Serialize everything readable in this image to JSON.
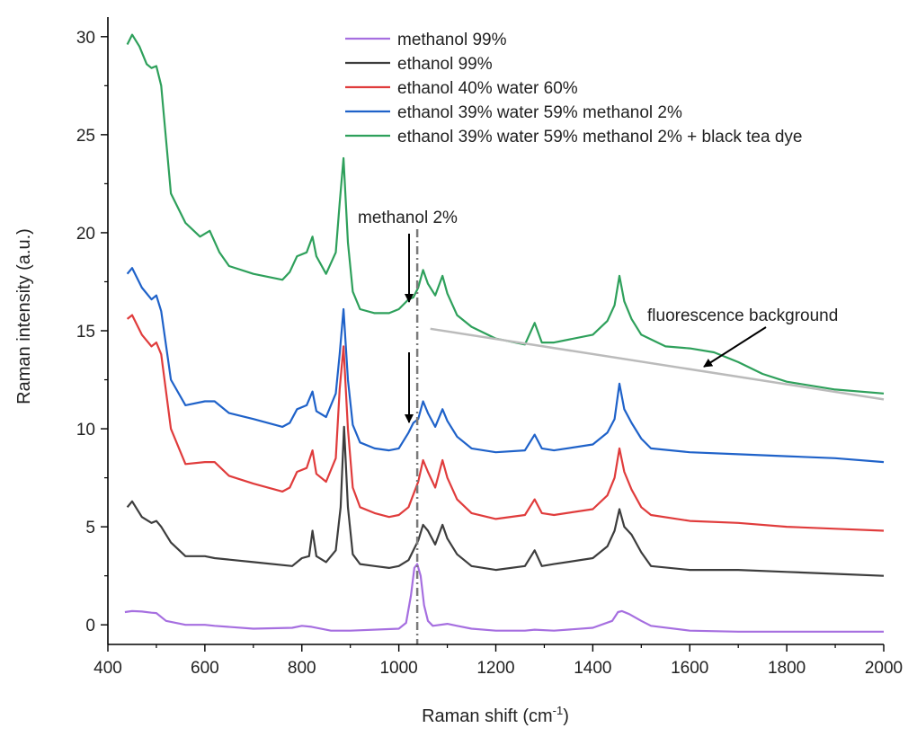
{
  "chart_data": {
    "type": "line",
    "xlabel": "Raman shift (cm",
    "xlabel_sup": "-1",
    "xlabel_end": ")",
    "ylabel": "Raman intensity (a.u.)",
    "xlim": [
      400,
      2000
    ],
    "ylim": [
      -1,
      31
    ],
    "xticks": [
      "400",
      "600",
      "800",
      "1000",
      "1200",
      "1400",
      "1600",
      "1800",
      "2000"
    ],
    "yticks": [
      "0",
      "5",
      "10",
      "15",
      "20",
      "25",
      "30"
    ],
    "legend_position": "top-right",
    "series": [
      {
        "name": "methanol 99%",
        "color": "#a66fe0",
        "x": [
          435,
          450,
          470,
          490,
          500,
          520,
          560,
          600,
          620,
          700,
          780,
          800,
          820,
          860,
          900,
          1000,
          1015,
          1025,
          1032,
          1038,
          1045,
          1052,
          1060,
          1070,
          1100,
          1120,
          1150,
          1200,
          1260,
          1280,
          1320,
          1400,
          1440,
          1452,
          1460,
          1475,
          1500,
          1520,
          1600,
          1700,
          1800,
          1900,
          2000
        ],
        "y": [
          0.65,
          0.7,
          0.68,
          0.62,
          0.6,
          0.2,
          0.0,
          0.0,
          -0.05,
          -0.2,
          -0.15,
          -0.05,
          -0.1,
          -0.3,
          -0.3,
          -0.2,
          0.1,
          1.5,
          2.9,
          3.1,
          2.5,
          1.0,
          0.2,
          -0.05,
          0.05,
          -0.05,
          -0.2,
          -0.3,
          -0.3,
          -0.25,
          -0.3,
          -0.15,
          0.2,
          0.65,
          0.7,
          0.55,
          0.2,
          -0.05,
          -0.3,
          -0.35,
          -0.35,
          -0.35,
          -0.35
        ]
      },
      {
        "name": "ethanol 99%",
        "color": "#3d3d3d",
        "x": [
          440,
          450,
          470,
          490,
          500,
          510,
          530,
          560,
          600,
          620,
          700,
          780,
          800,
          815,
          822,
          830,
          850,
          870,
          880,
          887,
          895,
          905,
          920,
          950,
          980,
          1000,
          1020,
          1040,
          1050,
          1060,
          1075,
          1090,
          1100,
          1120,
          1150,
          1200,
          1260,
          1280,
          1295,
          1320,
          1400,
          1430,
          1445,
          1455,
          1465,
          1480,
          1500,
          1520,
          1600,
          1700,
          1800,
          1900,
          2000
        ],
        "y": [
          6.0,
          6.3,
          5.5,
          5.2,
          5.3,
          5.0,
          4.2,
          3.5,
          3.5,
          3.4,
          3.2,
          3.0,
          3.4,
          3.5,
          4.8,
          3.5,
          3.2,
          3.8,
          6.0,
          10.1,
          6.0,
          3.6,
          3.1,
          3.0,
          2.9,
          3.0,
          3.3,
          4.3,
          5.1,
          4.8,
          4.1,
          5.1,
          4.4,
          3.6,
          3.0,
          2.8,
          3.0,
          3.8,
          3.0,
          3.1,
          3.4,
          4.0,
          4.8,
          5.9,
          5.0,
          4.6,
          3.7,
          3.0,
          2.8,
          2.8,
          2.7,
          2.6,
          2.5
        ]
      },
      {
        "name": "ethanol 40% water 60%",
        "color": "#e03c3c",
        "x": [
          440,
          450,
          470,
          490,
          500,
          510,
          530,
          560,
          600,
          620,
          650,
          700,
          760,
          775,
          790,
          810,
          822,
          830,
          850,
          870,
          878,
          886,
          895,
          905,
          920,
          950,
          980,
          1000,
          1020,
          1040,
          1050,
          1060,
          1075,
          1090,
          1100,
          1120,
          1150,
          1200,
          1260,
          1280,
          1295,
          1320,
          1400,
          1430,
          1445,
          1455,
          1465,
          1480,
          1500,
          1520,
          1600,
          1700,
          1800,
          1900,
          2000
        ],
        "y": [
          15.6,
          15.8,
          14.8,
          14.2,
          14.4,
          13.8,
          10.0,
          8.2,
          8.3,
          8.3,
          7.6,
          7.2,
          6.8,
          7.0,
          7.8,
          8.0,
          8.9,
          7.7,
          7.3,
          8.5,
          12.0,
          14.2,
          10.0,
          7.0,
          6.0,
          5.7,
          5.5,
          5.6,
          6.0,
          7.3,
          8.4,
          7.8,
          7.0,
          8.4,
          7.5,
          6.4,
          5.7,
          5.4,
          5.6,
          6.4,
          5.7,
          5.6,
          5.9,
          6.6,
          7.5,
          9.0,
          7.8,
          6.9,
          6.0,
          5.6,
          5.3,
          5.2,
          5.0,
          4.9,
          4.8
        ]
      },
      {
        "name": "ethanol 39% water 59% methanol 2%",
        "color": "#1f62c9",
        "x": [
          440,
          450,
          470,
          490,
          500,
          510,
          530,
          560,
          600,
          620,
          650,
          700,
          760,
          775,
          790,
          810,
          822,
          830,
          850,
          870,
          878,
          886,
          895,
          905,
          920,
          950,
          980,
          1000,
          1020,
          1030,
          1040,
          1050,
          1060,
          1075,
          1090,
          1100,
          1120,
          1150,
          1200,
          1260,
          1280,
          1295,
          1320,
          1400,
          1430,
          1445,
          1455,
          1465,
          1480,
          1500,
          1520,
          1600,
          1700,
          1800,
          1900,
          2000
        ],
        "y": [
          17.9,
          18.2,
          17.2,
          16.6,
          16.8,
          16.0,
          12.5,
          11.2,
          11.4,
          11.4,
          10.8,
          10.5,
          10.1,
          10.3,
          11.0,
          11.2,
          11.9,
          10.9,
          10.6,
          11.8,
          13.8,
          16.1,
          12.5,
          10.2,
          9.3,
          9.0,
          8.9,
          9.0,
          9.8,
          10.3,
          10.5,
          11.4,
          10.8,
          10.1,
          11.0,
          10.4,
          9.6,
          9.0,
          8.8,
          8.9,
          9.7,
          9.0,
          8.9,
          9.2,
          9.8,
          10.5,
          12.3,
          11.0,
          10.3,
          9.5,
          9.0,
          8.8,
          8.7,
          8.6,
          8.5,
          8.3
        ]
      },
      {
        "name": "ethanol 39% water 59% methanol 2% + black tea dye",
        "color": "#2ea05b",
        "x": [
          440,
          450,
          465,
          480,
          490,
          500,
          510,
          530,
          560,
          590,
          610,
          630,
          650,
          700,
          760,
          775,
          790,
          810,
          822,
          830,
          850,
          870,
          878,
          886,
          895,
          905,
          920,
          950,
          980,
          1000,
          1020,
          1030,
          1040,
          1050,
          1060,
          1075,
          1090,
          1100,
          1120,
          1150,
          1200,
          1260,
          1280,
          1295,
          1320,
          1400,
          1430,
          1445,
          1455,
          1465,
          1480,
          1500,
          1550,
          1600,
          1650,
          1700,
          1750,
          1800,
          1900,
          2000
        ],
        "y": [
          29.6,
          30.1,
          29.5,
          28.6,
          28.4,
          28.5,
          27.5,
          22.0,
          20.5,
          19.8,
          20.1,
          19.0,
          18.3,
          17.9,
          17.6,
          18.0,
          18.8,
          19.0,
          19.8,
          18.8,
          17.9,
          19.0,
          21.5,
          23.8,
          19.5,
          17.0,
          16.1,
          15.9,
          15.9,
          16.1,
          16.6,
          16.7,
          17.2,
          18.1,
          17.4,
          16.8,
          17.8,
          16.9,
          15.8,
          15.2,
          14.6,
          14.3,
          15.4,
          14.4,
          14.4,
          14.8,
          15.5,
          16.3,
          17.8,
          16.5,
          15.6,
          14.8,
          14.2,
          14.1,
          13.9,
          13.4,
          12.8,
          12.4,
          12.0,
          11.8
        ]
      }
    ],
    "guides": {
      "fluorescence_line": {
        "color": "#bbbbbb",
        "x": [
          1065,
          2000
        ],
        "y": [
          15.1,
          11.5
        ]
      },
      "methanol_marker": {
        "color": "#7a7a7a",
        "x": 1038
      }
    },
    "annotations": {
      "methanol_label": "methanol 2%",
      "fluorescence_label": "fluorescence background"
    }
  }
}
